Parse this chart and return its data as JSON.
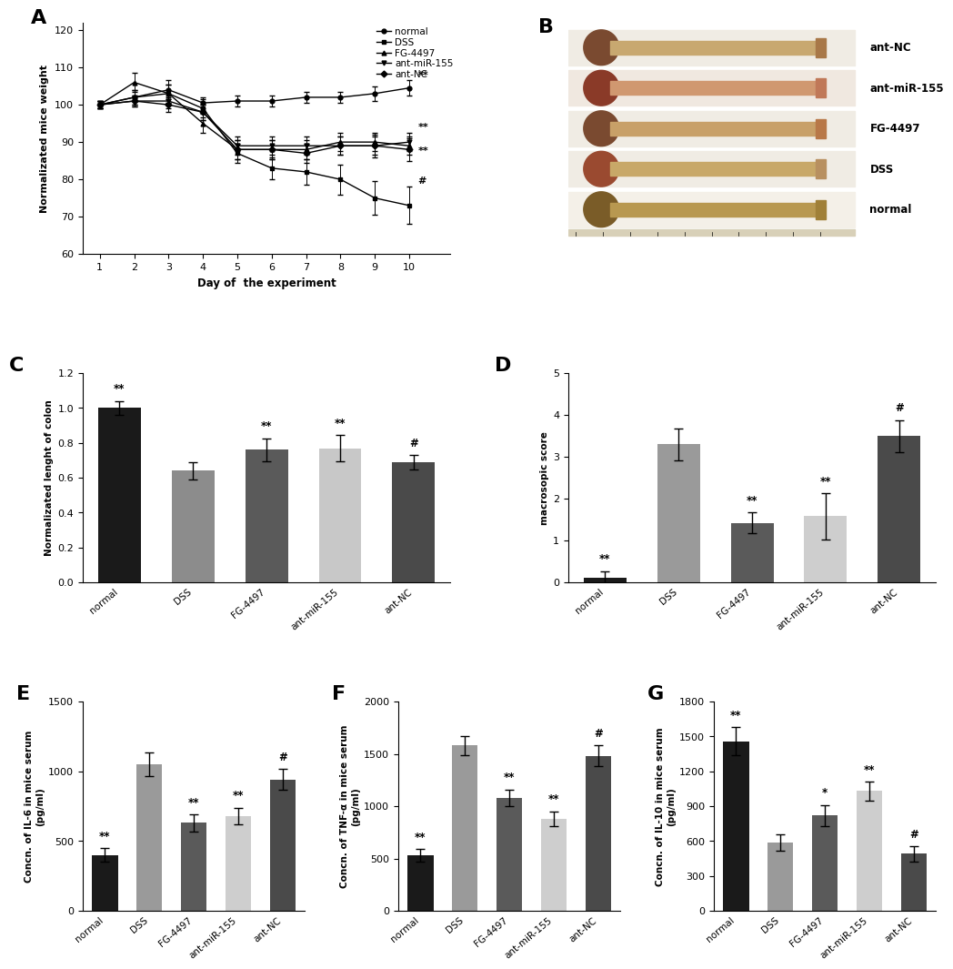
{
  "panel_A": {
    "xlabel": "Day of  the experiment",
    "ylabel": "Normalizated mice weight",
    "ylim": [
      60,
      120
    ],
    "yticks": [
      60,
      70,
      80,
      90,
      100,
      110,
      120
    ],
    "xticks": [
      1,
      2,
      3,
      4,
      5,
      6,
      7,
      8,
      9,
      10
    ],
    "series": {
      "normal": {
        "y": [
          100,
          102,
          104,
          100.5,
          101,
          101,
          102,
          102,
          103,
          104.5
        ],
        "yerr": [
          1.0,
          2.0,
          2.5,
          1.5,
          1.5,
          1.5,
          1.5,
          1.5,
          2.0,
          2.0
        ],
        "marker": "o"
      },
      "DSS": {
        "y": [
          100,
          102,
          103,
          99,
          87,
          83,
          82,
          80,
          75,
          73
        ],
        "yerr": [
          1.0,
          2.0,
          2.5,
          2.5,
          2.5,
          3.0,
          3.5,
          4.0,
          4.5,
          5.0
        ],
        "marker": "s"
      },
      "FG-4497": {
        "y": [
          100,
          106,
          103,
          95,
          88,
          88,
          88,
          90,
          90,
          89
        ],
        "yerr": [
          1.0,
          2.5,
          2.5,
          2.5,
          2.5,
          2.5,
          2.5,
          2.5,
          2.5,
          2.5
        ],
        "marker": "^"
      },
      "ant-miR-155": {
        "y": [
          100,
          101,
          101,
          98,
          89,
          89,
          89,
          89,
          89,
          90
        ],
        "yerr": [
          1.0,
          1.5,
          2.0,
          2.0,
          2.5,
          2.5,
          2.5,
          2.5,
          2.5,
          2.5
        ],
        "marker": "v"
      },
      "ant-NC": {
        "y": [
          100,
          101,
          100,
          98,
          88,
          88,
          87,
          89,
          89,
          88
        ],
        "yerr": [
          1.0,
          1.5,
          2.0,
          2.0,
          2.5,
          2.5,
          2.5,
          2.5,
          3.0,
          3.0
        ],
        "marker": "D"
      }
    },
    "series_order": [
      "normal",
      "DSS",
      "FG-4497",
      "ant-miR-155",
      "ant-NC"
    ],
    "end_labels": {
      "normal": "**",
      "DSS": "#",
      "FG-4497": "",
      "ant-miR-155": "**",
      "ant-NC": "**"
    }
  },
  "panel_B": {
    "labels": [
      "ant-NC",
      "ant-miR-155",
      "FG-4497",
      "DSS",
      "normal"
    ],
    "bg_colors": [
      "#e8ddd0",
      "#e8d0c8",
      "#e8ddd0",
      "#e8ddd0",
      "#f0e8d8"
    ],
    "colon_colors_left": [
      "#8B5A3C",
      "#9B4030",
      "#8B5A3C",
      "#9B4030",
      "#8B6940"
    ],
    "colon_colors_mid": [
      "#C8A878",
      "#C07858",
      "#C8A878",
      "#d09868",
      "#B8984C"
    ],
    "ruler_color": "#d4c8a8"
  },
  "panel_C": {
    "ylabel": "Normalizated lenght of colon",
    "ylim": [
      0,
      1.2
    ],
    "yticks": [
      0.0,
      0.2,
      0.4,
      0.6,
      0.8,
      1.0,
      1.2
    ],
    "categories": [
      "normal",
      "DSS",
      "FG-4497",
      "ant-miR-155",
      "ant-NC"
    ],
    "values": [
      1.0,
      0.64,
      0.76,
      0.77,
      0.69
    ],
    "errors": [
      0.04,
      0.05,
      0.065,
      0.075,
      0.04
    ],
    "colors": [
      "#1a1a1a",
      "#8c8c8c",
      "#5a5a5a",
      "#c8c8c8",
      "#4a4a4a"
    ],
    "sig_labels": [
      "**",
      "",
      "**",
      "**",
      "#"
    ]
  },
  "panel_D": {
    "ylabel": "macrosopic score",
    "ylim": [
      0,
      5
    ],
    "yticks": [
      0,
      1,
      2,
      3,
      4,
      5
    ],
    "categories": [
      "normal",
      "DSS",
      "FG-4497",
      "ant-miR-155",
      "ant-NC"
    ],
    "values": [
      0.12,
      3.3,
      1.42,
      1.58,
      3.5
    ],
    "errors": [
      0.15,
      0.38,
      0.25,
      0.55,
      0.38
    ],
    "colors": [
      "#1a1a1a",
      "#9a9a9a",
      "#5a5a5a",
      "#cecece",
      "#4a4a4a"
    ],
    "sig_labels": [
      "**",
      "",
      "**",
      "**",
      "#"
    ]
  },
  "panel_E": {
    "ylabel": "Concn. of IL-6 in mice serum\n(pg/ml)",
    "ylim": [
      0,
      1500
    ],
    "yticks": [
      0,
      500,
      1000,
      1500
    ],
    "categories": [
      "normal",
      "DSS",
      "FG-4497",
      "ant-miR-155",
      "ant-NC"
    ],
    "values": [
      400,
      1050,
      630,
      680,
      940
    ],
    "errors": [
      50,
      85,
      60,
      60,
      75
    ],
    "colors": [
      "#1a1a1a",
      "#9a9a9a",
      "#5a5a5a",
      "#cecece",
      "#4a4a4a"
    ],
    "sig_labels": [
      "**",
      "",
      "**",
      "**",
      "#"
    ]
  },
  "panel_F": {
    "ylabel": "Concn. of TNF-α in mice serum\n(pg/ml)",
    "ylim": [
      0,
      2000
    ],
    "yticks": [
      0,
      500,
      1000,
      1500,
      2000
    ],
    "categories": [
      "normal",
      "DSS",
      "FG-4497",
      "ant-miR-155",
      "ant-NC"
    ],
    "values": [
      530,
      1580,
      1080,
      880,
      1480
    ],
    "errors": [
      60,
      90,
      80,
      70,
      100
    ],
    "colors": [
      "#1a1a1a",
      "#9a9a9a",
      "#5a5a5a",
      "#cecece",
      "#4a4a4a"
    ],
    "sig_labels": [
      "**",
      "",
      "**",
      "**",
      "#"
    ]
  },
  "panel_G": {
    "ylabel": "Concn. of IL-10 in mice serum\n(pg/ml)",
    "ylim": [
      0,
      1800
    ],
    "yticks": [
      0,
      300,
      600,
      900,
      1200,
      1500,
      1800
    ],
    "categories": [
      "normal",
      "DSS",
      "FG-4497",
      "ant-miR-155",
      "ant-NC"
    ],
    "values": [
      1460,
      590,
      820,
      1030,
      490
    ],
    "errors": [
      120,
      70,
      90,
      80,
      65
    ],
    "colors": [
      "#1a1a1a",
      "#9a9a9a",
      "#5a5a5a",
      "#cecece",
      "#4a4a4a"
    ],
    "sig_labels": [
      "**",
      "",
      "*",
      "**",
      "#"
    ]
  }
}
